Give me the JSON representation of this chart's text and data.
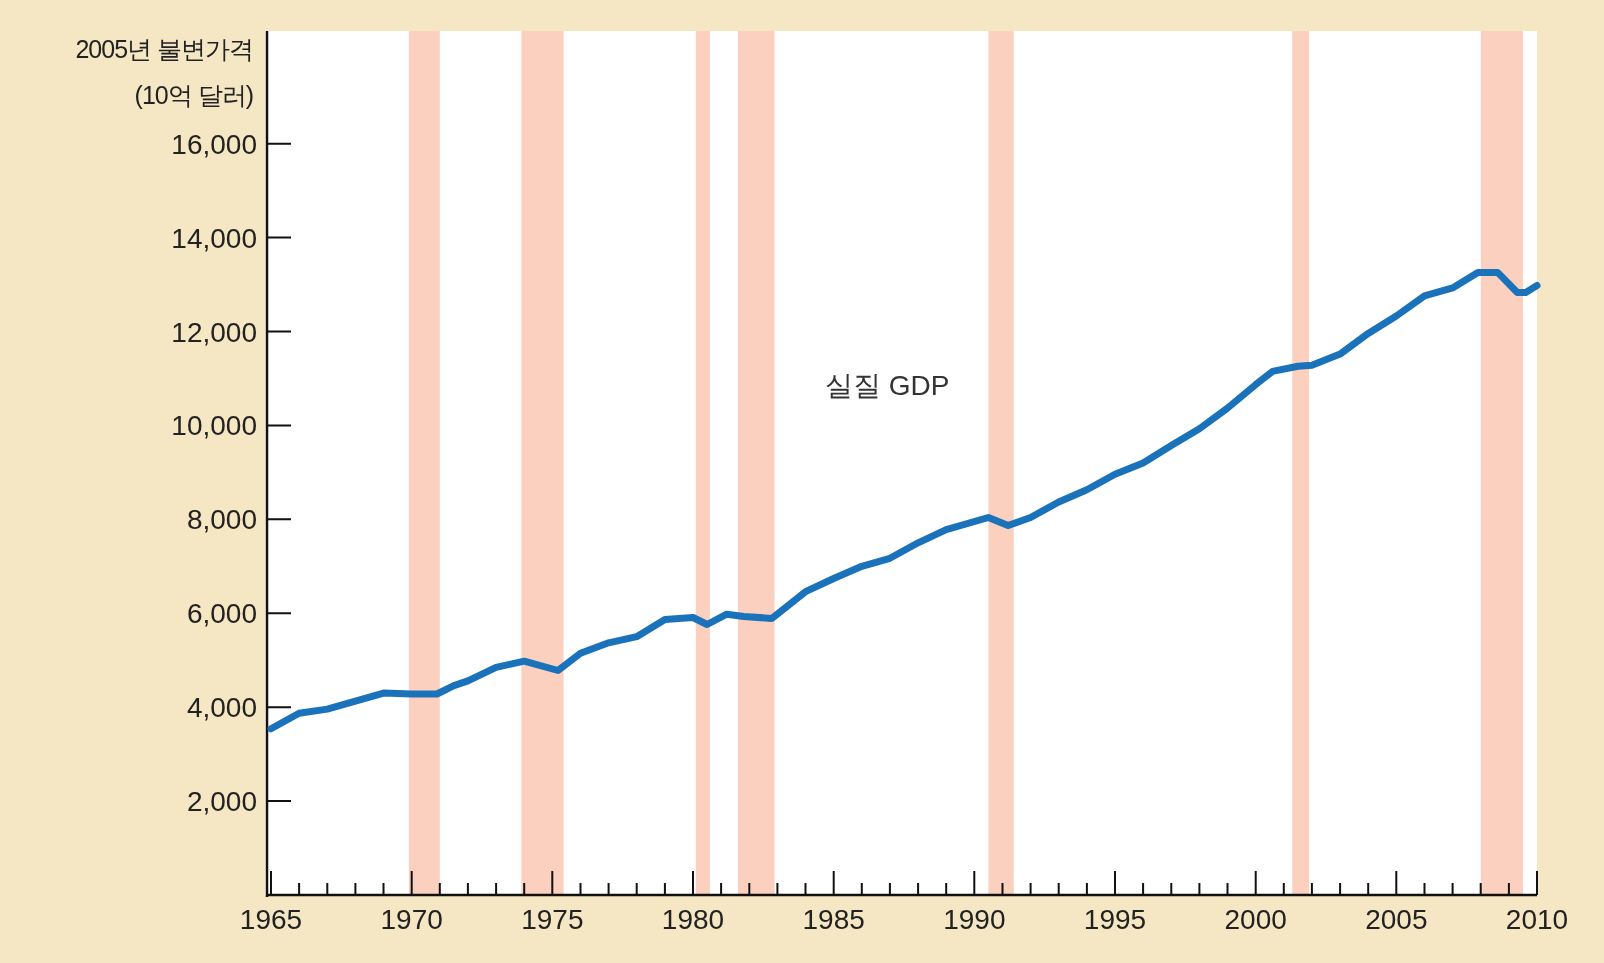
{
  "chart_data": {
    "type": "line",
    "ylabel": "2005년 불변가격 (10억 달러)",
    "xlim": [
      1965,
      2010
    ],
    "ylim": [
      0,
      18400
    ],
    "xticks": [
      1965,
      {
        "value": 1966,
        "label": null
      },
      {
        "value": 1967,
        "label": null
      },
      {
        "value": 1968,
        "label": null
      },
      {
        "value": 1969,
        "label": null
      },
      1970,
      {
        "value": 1971,
        "label": null
      },
      {
        "value": 1972,
        "label": null
      },
      {
        "value": 1973,
        "label": null
      },
      {
        "value": 1974,
        "label": null
      },
      1975,
      {
        "value": 1976,
        "label": null
      },
      {
        "value": 1977,
        "label": null
      },
      {
        "value": 1978,
        "label": null
      },
      {
        "value": 1979,
        "label": null
      },
      1980,
      {
        "value": 1981,
        "label": null
      },
      {
        "value": 1982,
        "label": null
      },
      {
        "value": 1983,
        "label": null
      },
      {
        "value": 1984,
        "label": null
      },
      1985,
      {
        "value": 1986,
        "label": null
      },
      {
        "value": 1987,
        "label": null
      },
      {
        "value": 1988,
        "label": null
      },
      {
        "value": 1989,
        "label": null
      },
      1990,
      {
        "value": 1991,
        "label": null
      },
      {
        "value": 1992,
        "label": null
      },
      {
        "value": 1993,
        "label": null
      },
      {
        "value": 1994,
        "label": null
      },
      1995,
      {
        "value": 1996,
        "label": null
      },
      {
        "value": 1997,
        "label": null
      },
      {
        "value": 1998,
        "label": null
      },
      {
        "value": 1999,
        "label": null
      },
      2000,
      {
        "value": 2001,
        "label": null
      },
      {
        "value": 2002,
        "label": null
      },
      {
        "value": 2003,
        "label": null
      },
      {
        "value": 2004,
        "label": null
      },
      2005,
      {
        "value": 2006,
        "label": null
      },
      {
        "value": 2007,
        "label": null
      },
      {
        "value": 2008,
        "label": null
      },
      {
        "value": 2009,
        "label": null
      },
      2010
    ],
    "yticks": [
      {
        "value": 2000,
        "label": "2,000"
      },
      {
        "value": 4000,
        "label": "4,000"
      },
      {
        "value": 6000,
        "label": "6,000"
      },
      {
        "value": 8000,
        "label": "8,000"
      },
      {
        "value": 10000,
        "label": "10,000"
      },
      {
        "value": 12000,
        "label": "12,000"
      },
      {
        "value": 14000,
        "label": "14,000"
      },
      {
        "value": 16000,
        "label": "16,000"
      }
    ],
    "bands": [
      {
        "axis": "x",
        "from": 1969.9,
        "to": 1971.0,
        "color": "#fbd0bf"
      },
      {
        "axis": "x",
        "from": 1973.9,
        "to": 1975.4,
        "color": "#fbd0bf"
      },
      {
        "axis": "x",
        "from": 1980.1,
        "to": 1980.6,
        "color": "#fbd0bf"
      },
      {
        "axis": "x",
        "from": 1981.6,
        "to": 1982.9,
        "color": "#fbd0bf"
      },
      {
        "axis": "x",
        "from": 1990.5,
        "to": 1991.4,
        "color": "#fbd0bf"
      },
      {
        "axis": "x",
        "from": 2001.3,
        "to": 2001.9,
        "color": "#fbd0bf"
      },
      {
        "axis": "x",
        "from": 2008.0,
        "to": 2009.5,
        "color": "#fbd0bf"
      }
    ],
    "series": [
      {
        "name": "실질 GDP",
        "color": "#1a72bb",
        "x": [
          1965,
          1966,
          1967,
          1968,
          1969,
          1970,
          1970.9,
          1971.5,
          1972,
          1973,
          1974,
          1975.2,
          1976,
          1977,
          1978,
          1979,
          1980,
          1980.5,
          1981.2,
          1981.8,
          1982.8,
          1984,
          1985,
          1986,
          1987,
          1988,
          1989,
          1990.5,
          1991.2,
          1992,
          1993,
          1994,
          1995,
          1996,
          1997,
          1998,
          1999,
          2000,
          2000.6,
          2001.5,
          2002,
          2003,
          2004,
          2005,
          2006,
          2007,
          2007.9,
          2008.6,
          2009.3,
          2009.6,
          2010
        ],
        "values": [
          3540,
          3870,
          3960,
          4130,
          4300,
          4280,
          4280,
          4460,
          4560,
          4850,
          4980,
          4780,
          5150,
          5370,
          5500,
          5870,
          5910,
          5760,
          5980,
          5930,
          5890,
          6460,
          6740,
          7000,
          7170,
          7500,
          7780,
          8040,
          7870,
          8040,
          8370,
          8630,
          8960,
          9200,
          9570,
          9930,
          10370,
          10870,
          11150,
          11260,
          11280,
          11520,
          11960,
          12330,
          12760,
          12930,
          13260,
          13260,
          12830,
          12830,
          12980
        ]
      }
    ]
  }
}
